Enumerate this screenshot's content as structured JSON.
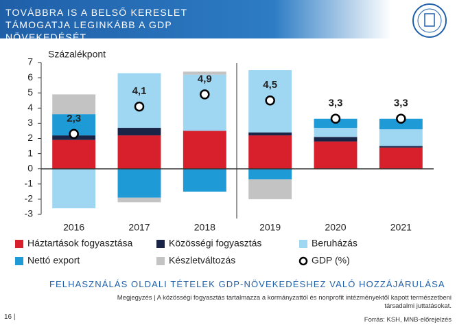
{
  "header": {
    "title": "TOVÁBBRA IS A BELSŐ KERESLET TÁMOGATJA LEGINKÁBB A GDP NÖVEKEDÉSÉT"
  },
  "chart_data": {
    "type": "bar",
    "stacked": true,
    "ylabel": "Százalékpont",
    "categories": [
      "2016",
      "2017",
      "2018",
      "2019",
      "2020",
      "2021"
    ],
    "ylim": [
      -3,
      7
    ],
    "yticks": [
      -3,
      -2,
      -1,
      0,
      1,
      2,
      3,
      4,
      5,
      6,
      7
    ],
    "grid": false,
    "series": [
      {
        "name": "Háztartások fogyasztása",
        "color": "#d7202b",
        "values": [
          1.9,
          2.2,
          2.5,
          2.2,
          1.8,
          1.4
        ]
      },
      {
        "name": "Közösségi fogyasztás",
        "color": "#1a2447",
        "values": [
          0.3,
          0.5,
          0,
          0.2,
          0.3,
          0.1
        ]
      },
      {
        "name": "Beruházás",
        "color": "#9fd7f3",
        "values": [
          -2.6,
          3.6,
          3.7,
          4.1,
          0.6,
          1.1
        ]
      },
      {
        "name": "Nettó export",
        "color": "#1e9ad6",
        "values": [
          1.4,
          -1.9,
          -1.5,
          -0.7,
          0.6,
          0.7
        ]
      },
      {
        "name": "Készletváltozás",
        "color": "#c3c3c3",
        "values": [
          1.3,
          -0.3,
          0.2,
          -1.3,
          0,
          0
        ]
      }
    ],
    "markers": {
      "name": "GDP (%)",
      "values": [
        2.3,
        4.1,
        4.9,
        4.5,
        3.3,
        3.3
      ],
      "value_labels": [
        "2,3",
        "4,1",
        "4,9",
        "4,5",
        "3,3",
        "3,3"
      ]
    }
  },
  "footer": {
    "subtitle": "FELHASZNÁLÁS OLDALI TÉTELEK GDP-NÖVEKEDÉSHEZ VALÓ HOZZÁJÁRULÁSA",
    "note": "Megjegyzés | A közösségi fogyasztás tartalmazza a kormányzattól és nonprofit intézményektől kapott természetbeni társadalmi juttatásokat.",
    "source": "Forrás: KSH, MNB-előrejelzés",
    "page": "16 |"
  }
}
